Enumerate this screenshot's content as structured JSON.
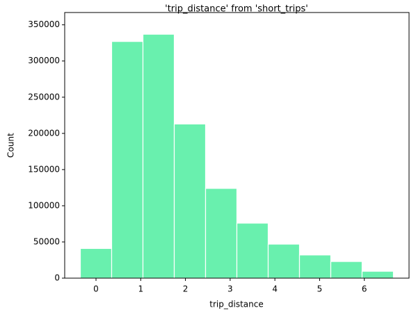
{
  "chart_data": {
    "type": "histogram",
    "title": "'trip_distance' from 'short_trips'",
    "x_label": "trip_distance",
    "y_label": "Count",
    "bins": [
      -0.35,
      0.35,
      1.05,
      1.75,
      2.45,
      3.15,
      3.85,
      4.55,
      5.25,
      5.95,
      6.65
    ],
    "values": [
      41000,
      327000,
      337000,
      213000,
      124000,
      76000,
      47000,
      32000,
      23000,
      9500
    ],
    "color": "#69f0ae",
    "edge_color": "#ffffff",
    "xlim": [
      -0.7,
      7.0
    ],
    "ylim": [
      0,
      367000
    ],
    "xticks": [
      0,
      1,
      2,
      3,
      4,
      5,
      6
    ],
    "yticks": [
      0,
      50000,
      100000,
      150000,
      200000,
      250000,
      300000,
      350000
    ]
  }
}
